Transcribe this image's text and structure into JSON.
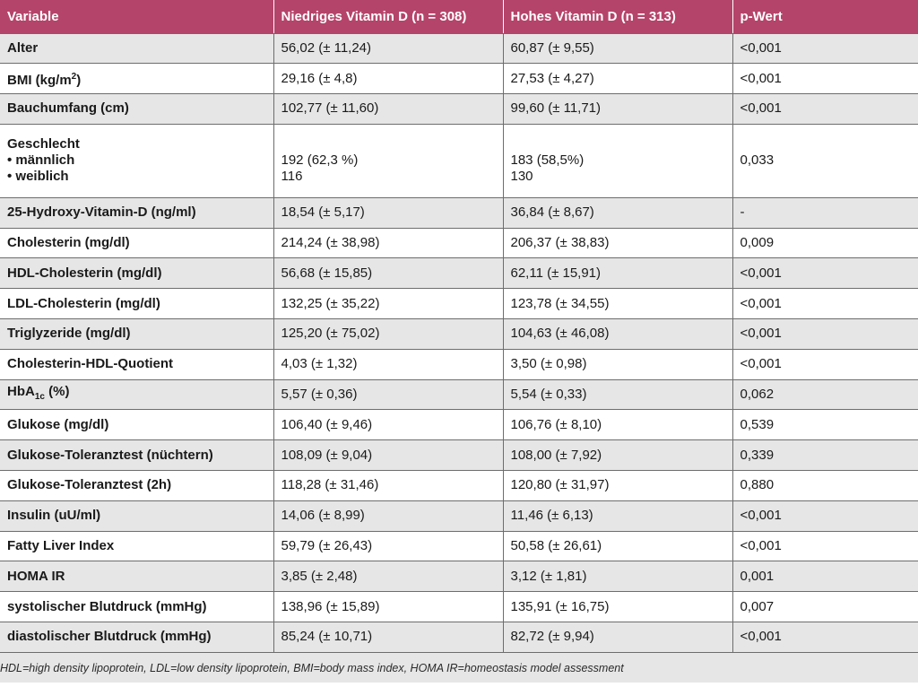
{
  "header": {
    "col1": "Variable",
    "col2": "Niedriges Vitamin D  (n = 308)",
    "col3": "Hohes Vitamin D (n = 313)",
    "col4": "p-Wert"
  },
  "rows": [
    {
      "label": "Alter",
      "low": "56,02 (± 11,24)",
      "high": "60,87 (± 9,55)",
      "p": "<0,001"
    },
    {
      "label_pre": "BMI (kg/m",
      "label_sup": "2",
      "label_post": ")",
      "low": "29,16 (± 4,8)",
      "high": "27,53 (± 4,27)",
      "p": "<0,001"
    },
    {
      "label": "Bauchumfang (cm)",
      "low": "102,77 (± 11,60)",
      "high": "99,60 (± 11,71)",
      "p": "<0,001"
    },
    {
      "label_lines": [
        "Geschlecht",
        "• männlich",
        "• weiblich"
      ],
      "low_lines": [
        "192 (62,3 %)",
        "116"
      ],
      "high_lines": [
        "183 (58,5%)",
        "130"
      ],
      "p": "0,033"
    },
    {
      "label": "25-Hydroxy-Vitamin-D (ng/ml)",
      "low": "18,54 (± 5,17)",
      "high": "36,84 (± 8,67)",
      "p": "-"
    },
    {
      "label": "Cholesterin (mg/dl)",
      "low": "214,24 (± 38,98)",
      "high": "206,37 (± 38,83)",
      "p": "0,009"
    },
    {
      "label": "HDL-Cholesterin (mg/dl)",
      "low": "56,68 (± 15,85)",
      "high": "62,11 (± 15,91)",
      "p": "<0,001"
    },
    {
      "label": "LDL-Cholesterin (mg/dl)",
      "low": "132,25 (± 35,22)",
      "high": "123,78 (± 34,55)",
      "p": "<0,001"
    },
    {
      "label": "Triglyzeride (mg/dl)",
      "low": "125,20 (± 75,02)",
      "high": "104,63 (± 46,08)",
      "p": "<0,001"
    },
    {
      "label": "Cholesterin-HDL-Quotient",
      "low": "4,03 (± 1,32)",
      "high": "3,50 (± 0,98)",
      "p": "<0,001"
    },
    {
      "label_pre": "HbA",
      "label_sub": "1c",
      "label_post": " (%)",
      "low": "5,57 (± 0,36)",
      "high": "5,54 (± 0,33)",
      "p": "0,062"
    },
    {
      "label": "Glukose (mg/dl)",
      "low": "106,40 (± 9,46)",
      "high": "106,76 (± 8,10)",
      "p": "0,539"
    },
    {
      "label": "Glukose-Toleranztest (nüchtern)",
      "low": "108,09 (± 9,04)",
      "high": "108,00 (± 7,92)",
      "p": "0,339"
    },
    {
      "label": "Glukose-Toleranztest (2h)",
      "low": "118,28 (± 31,46)",
      "high": "120,80 (± 31,97)",
      "p": "0,880"
    },
    {
      "label": "Insulin (uU/ml)",
      "low": "14,06 (± 8,99)",
      "high": "11,46 (± 6,13)",
      "p": "<0,001"
    },
    {
      "label": "Fatty Liver Index",
      "low": "59,79 (± 26,43)",
      "high": "50,58 (± 26,61)",
      "p": "<0,001"
    },
    {
      "label": "HOMA IR",
      "low": "3,85 (± 2,48)",
      "high": "3,12 (± 1,81)",
      "p": "0,001"
    },
    {
      "label": "systolischer Blutdruck (mmHg)",
      "low": "138,96 (± 15,89)",
      "high": "135,91 (± 16,75)",
      "p": "0,007"
    },
    {
      "label": "diastolischer Blutdruck (mmHg)",
      "low": "85,24 (± 10,71)",
      "high": "82,72 (± 9,94)",
      "p": "<0,001"
    }
  ],
  "footnote": "HDL=high density lipoprotein, LDL=low density lipoprotein, BMI=body mass index, HOMA IR=homeostasis model assessment",
  "colors": {
    "header_bg": "#b5446a",
    "row_alt_bg": "#e6e6e6",
    "row_plain_bg": "#ffffff"
  }
}
